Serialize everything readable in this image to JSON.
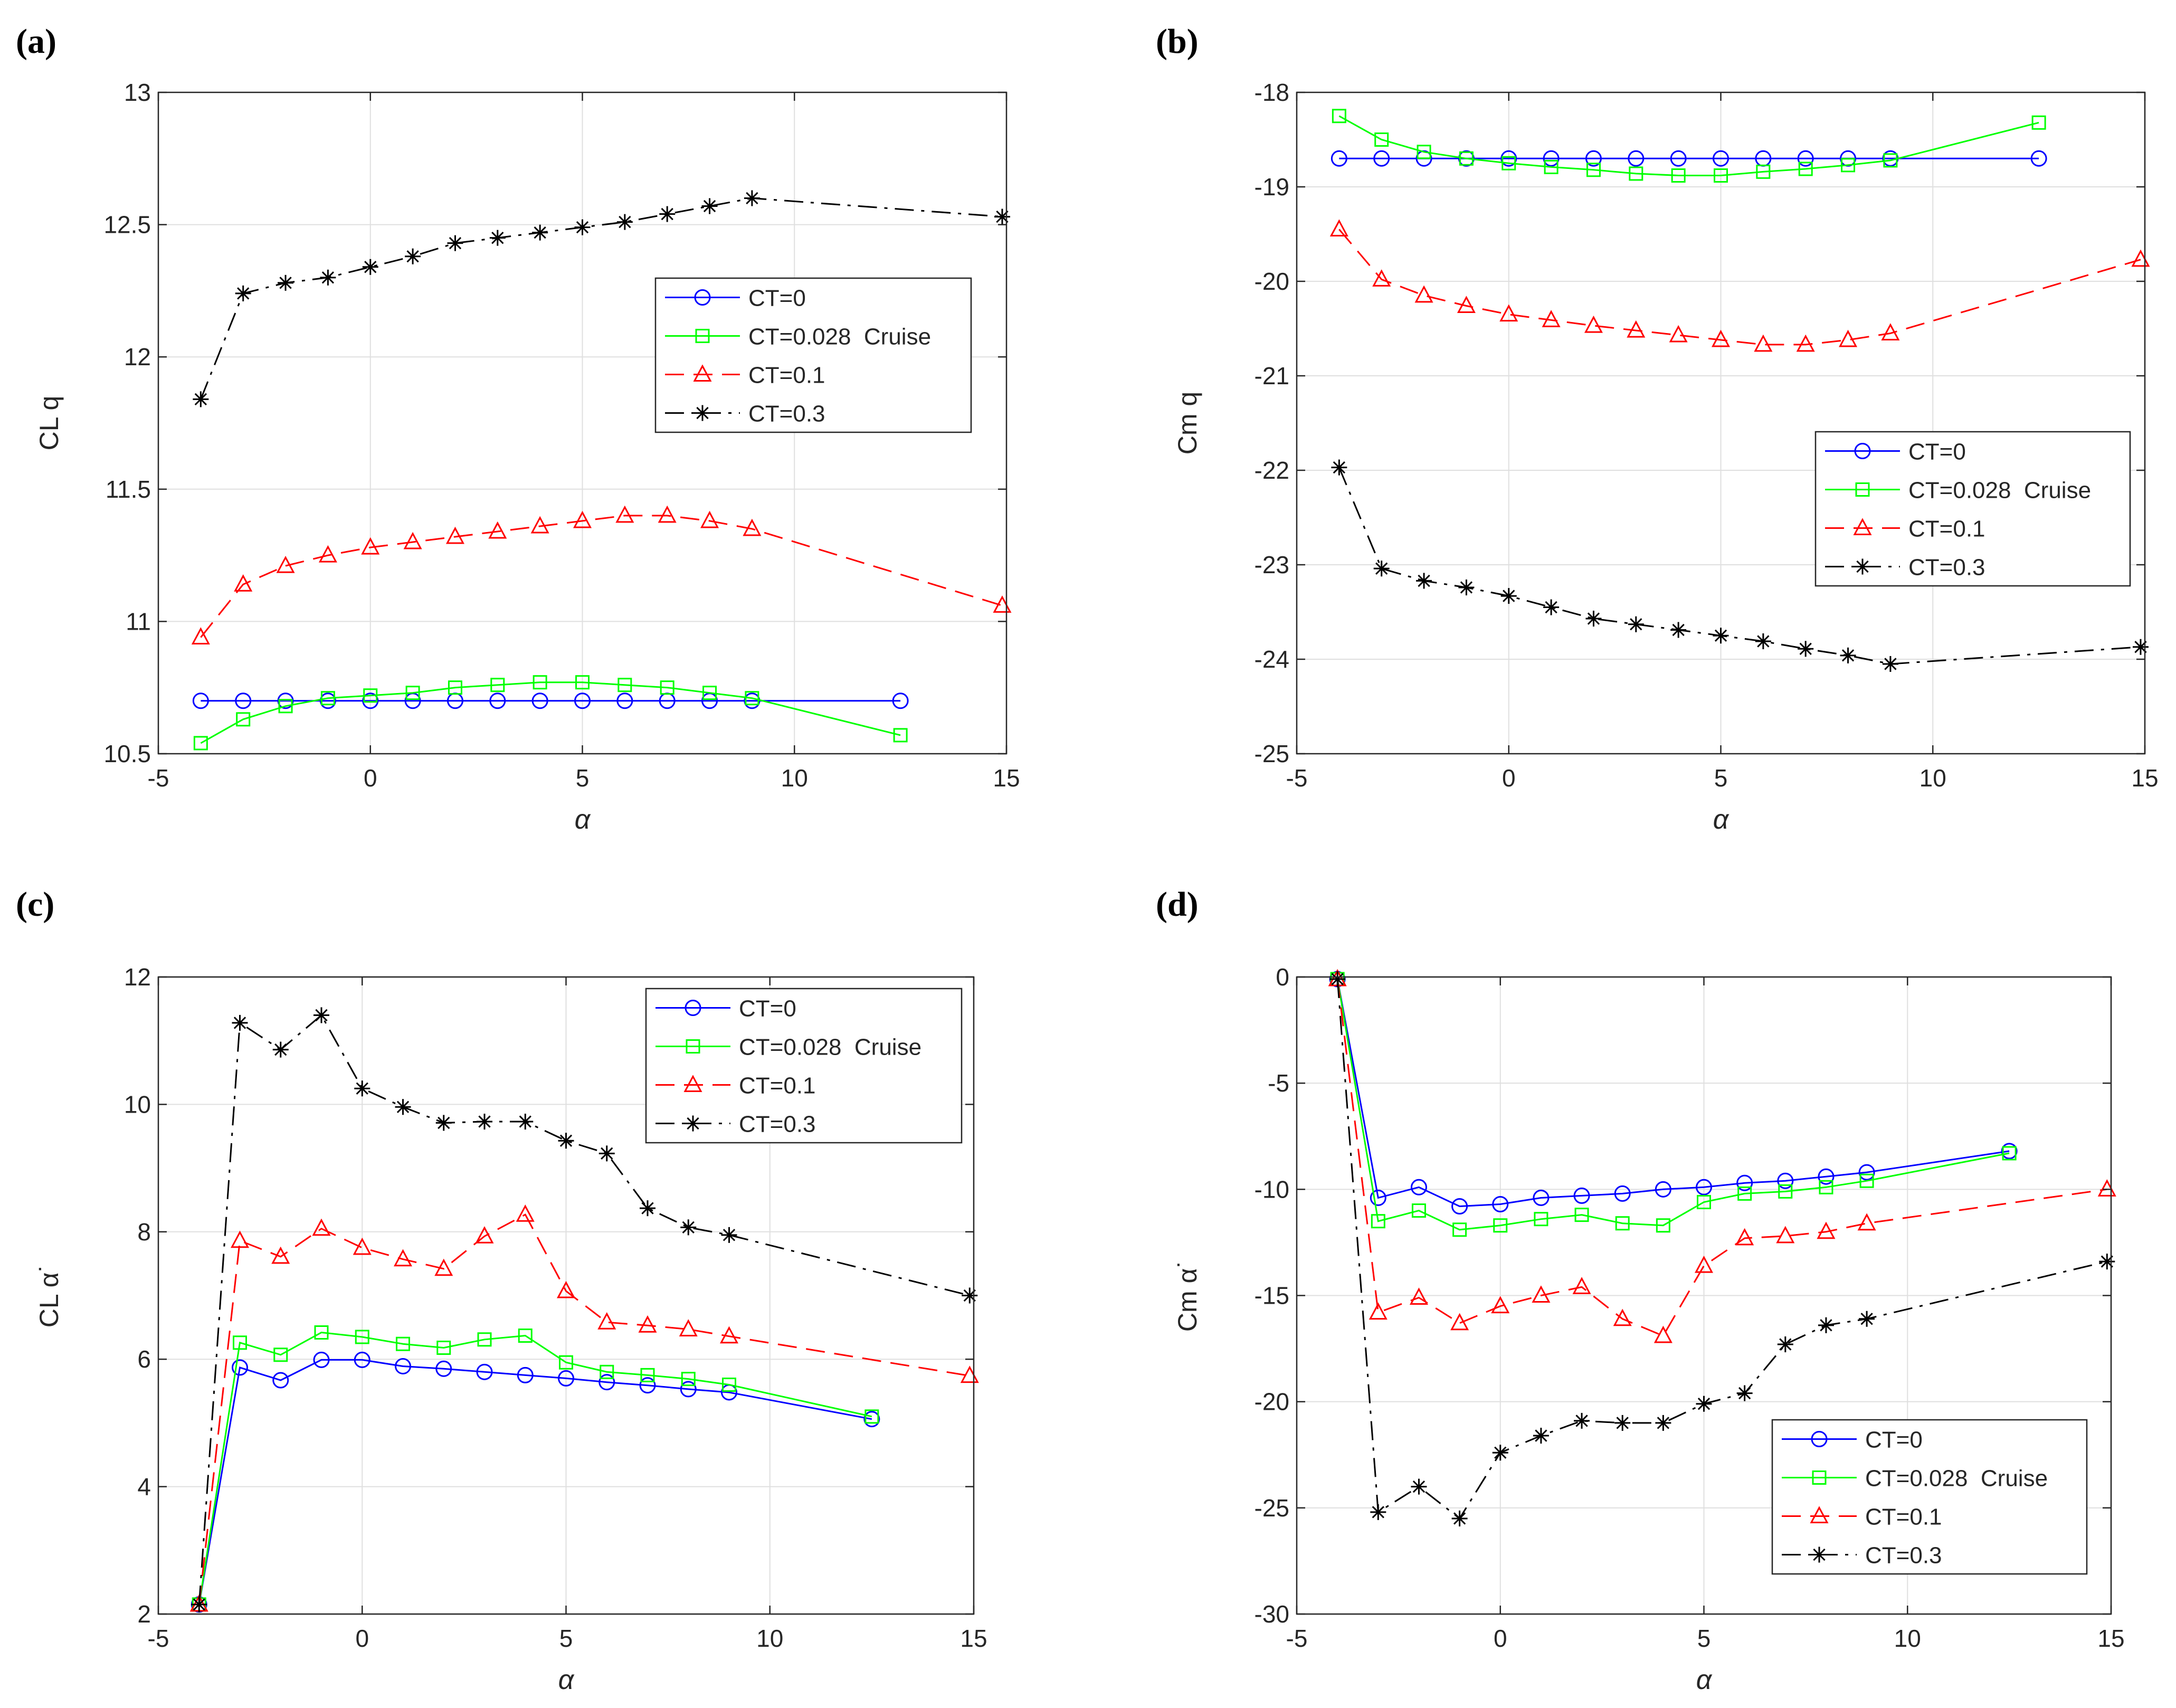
{
  "chart_data": [
    {
      "panel_label": "(a)",
      "type": "line",
      "title": "",
      "xlabel": "α",
      "ylabel": "CL q",
      "xlim": [
        -5,
        15
      ],
      "ylim": [
        10.5,
        13
      ],
      "xticks": [
        -5,
        0,
        5,
        10,
        15
      ],
      "yticks": [
        10.5,
        11,
        11.5,
        12,
        12.5,
        13
      ],
      "xtick_labels": [
        "-5",
        "0",
        "5",
        "10",
        "15"
      ],
      "ytick_labels": [
        "10.5",
        "11",
        "11.5",
        "12",
        "12.5",
        "13"
      ],
      "grid": true,
      "legend_position": "upper-right",
      "series": [
        {
          "name": "CT=0",
          "color": "#0000ff",
          "dash": "solid",
          "marker": "circle",
          "x": [
            -4,
            -3,
            -2,
            -1,
            0,
            1,
            2,
            3,
            4,
            5,
            6,
            7,
            8,
            9,
            12.5
          ],
          "y": [
            10.7,
            10.7,
            10.7,
            10.7,
            10.7,
            10.7,
            10.7,
            10.7,
            10.7,
            10.7,
            10.7,
            10.7,
            10.7,
            10.7,
            10.7
          ]
        },
        {
          "name": "CT=0.028  Cruise",
          "color": "#00ff00",
          "dash": "solid",
          "marker": "square",
          "x": [
            -4,
            -3,
            -2,
            -1,
            0,
            1,
            2,
            3,
            4,
            5,
            6,
            7,
            8,
            9,
            12.5
          ],
          "y": [
            10.54,
            10.63,
            10.68,
            10.71,
            10.72,
            10.73,
            10.75,
            10.76,
            10.77,
            10.77,
            10.76,
            10.75,
            10.73,
            10.71,
            10.57
          ]
        },
        {
          "name": "CT=0.1",
          "color": "#ff0000",
          "dash": "dashed",
          "marker": "triangle",
          "x": [
            -4,
            -3,
            -2,
            -1,
            0,
            1,
            2,
            3,
            4,
            5,
            6,
            7,
            8,
            9,
            14.9
          ],
          "y": [
            10.94,
            11.14,
            11.21,
            11.25,
            11.28,
            11.3,
            11.32,
            11.34,
            11.36,
            11.38,
            11.4,
            11.4,
            11.38,
            11.35,
            11.06
          ]
        },
        {
          "name": "CT=0.3",
          "color": "#000000",
          "dash": "dashdot",
          "marker": "star",
          "x": [
            -4,
            -3,
            -2,
            -1,
            0,
            1,
            2,
            3,
            4,
            5,
            6,
            7,
            8,
            9,
            14.9
          ],
          "y": [
            11.84,
            12.24,
            12.28,
            12.3,
            12.34,
            12.38,
            12.43,
            12.45,
            12.47,
            12.49,
            12.51,
            12.54,
            12.57,
            12.6,
            12.53
          ]
        }
      ]
    },
    {
      "panel_label": "(b)",
      "type": "line",
      "title": "",
      "xlabel": "α",
      "ylabel": "Cm q",
      "xlim": [
        -5,
        15
      ],
      "ylim": [
        -25,
        -18
      ],
      "xticks": [
        -5,
        0,
        5,
        10,
        15
      ],
      "yticks": [
        -25,
        -24,
        -23,
        -22,
        -21,
        -20,
        -19,
        -18
      ],
      "xtick_labels": [
        "-5",
        "0",
        "5",
        "10",
        "15"
      ],
      "ytick_labels": [
        "-25",
        "-24",
        "-23",
        "-22",
        "-21",
        "-20",
        "-19",
        "-18"
      ],
      "grid": true,
      "legend_position": "middle-right",
      "series": [
        {
          "name": "CT=0",
          "color": "#0000ff",
          "dash": "solid",
          "marker": "circle",
          "x": [
            -4,
            -3,
            -2,
            -1,
            0,
            1,
            2,
            3,
            4,
            5,
            6,
            7,
            8,
            9,
            12.5
          ],
          "y": [
            -18.7,
            -18.7,
            -18.7,
            -18.7,
            -18.7,
            -18.7,
            -18.7,
            -18.7,
            -18.7,
            -18.7,
            -18.7,
            -18.7,
            -18.7,
            -18.7,
            -18.7
          ]
        },
        {
          "name": "CT=0.028  Cruise",
          "color": "#00ff00",
          "dash": "solid",
          "marker": "square",
          "x": [
            -4,
            -3,
            -2,
            -1,
            0,
            1,
            2,
            3,
            4,
            5,
            6,
            7,
            8,
            9,
            12.5
          ],
          "y": [
            -18.25,
            -18.5,
            -18.63,
            -18.7,
            -18.75,
            -18.79,
            -18.82,
            -18.86,
            -18.88,
            -18.88,
            -18.84,
            -18.81,
            -18.77,
            -18.72,
            -18.32
          ]
        },
        {
          "name": "CT=0.1",
          "color": "#ff0000",
          "dash": "dashed",
          "marker": "triangle",
          "x": [
            -4,
            -3,
            -2,
            -1,
            0,
            1,
            2,
            3,
            4,
            5,
            6,
            7,
            8,
            9,
            14.9
          ],
          "y": [
            -19.45,
            -19.98,
            -20.15,
            -20.26,
            -20.35,
            -20.41,
            -20.47,
            -20.52,
            -20.57,
            -20.62,
            -20.67,
            -20.67,
            -20.62,
            -20.55,
            -19.77
          ]
        },
        {
          "name": "CT=0.3",
          "color": "#000000",
          "dash": "dashdot",
          "marker": "star",
          "x": [
            -4,
            -3,
            -2,
            -1,
            0,
            1,
            2,
            3,
            4,
            5,
            6,
            7,
            8,
            9,
            14.9
          ],
          "y": [
            -21.97,
            -23.04,
            -23.17,
            -23.24,
            -23.33,
            -23.45,
            -23.57,
            -23.63,
            -23.69,
            -23.75,
            -23.81,
            -23.89,
            -23.96,
            -24.05,
            -23.87
          ]
        }
      ]
    },
    {
      "panel_label": "(c)",
      "type": "line",
      "title": "",
      "xlabel": "α",
      "ylabel": "CL α˙",
      "xlim": [
        -5,
        15
      ],
      "ylim": [
        2,
        12
      ],
      "xticks": [
        -5,
        0,
        5,
        10,
        15
      ],
      "yticks": [
        2,
        4,
        6,
        8,
        10,
        12
      ],
      "xtick_labels": [
        "-5",
        "0",
        "5",
        "10",
        "15"
      ],
      "ytick_labels": [
        "2",
        "4",
        "6",
        "8",
        "10",
        "12"
      ],
      "grid": true,
      "legend_position": "upper-right",
      "series": [
        {
          "name": "CT=0",
          "color": "#0000ff",
          "dash": "solid",
          "marker": "circle",
          "x": [
            -4,
            -3,
            -2,
            -1,
            0,
            1,
            2,
            3,
            4,
            5,
            6,
            7,
            8,
            9,
            12.5
          ],
          "y": [
            2.15,
            5.87,
            5.67,
            5.99,
            5.99,
            5.89,
            5.85,
            5.8,
            5.75,
            5.7,
            5.64,
            5.59,
            5.53,
            5.48,
            5.06
          ]
        },
        {
          "name": "CT=0.028  Cruise",
          "color": "#00ff00",
          "dash": "solid",
          "marker": "square",
          "x": [
            -4,
            -3,
            -2,
            -1,
            0,
            1,
            2,
            3,
            4,
            5,
            6,
            7,
            8,
            9,
            12.5
          ],
          "y": [
            2.15,
            6.26,
            6.07,
            6.42,
            6.35,
            6.24,
            6.18,
            6.31,
            6.37,
            5.95,
            5.8,
            5.75,
            5.69,
            5.6,
            5.1
          ]
        },
        {
          "name": "CT=0.1",
          "color": "#ff0000",
          "dash": "dashed",
          "marker": "triangle",
          "x": [
            -4,
            -3,
            -2,
            -1,
            0,
            1,
            2,
            3,
            4,
            5,
            6,
            7,
            8,
            9,
            14.9
          ],
          "y": [
            2.15,
            7.86,
            7.61,
            8.05,
            7.75,
            7.57,
            7.42,
            7.93,
            8.27,
            7.07,
            6.58,
            6.53,
            6.47,
            6.36,
            5.74
          ]
        },
        {
          "name": "CT=0.3",
          "color": "#000000",
          "dash": "dashdot",
          "marker": "star",
          "x": [
            -4,
            -3,
            -2,
            -1,
            0,
            1,
            2,
            3,
            4,
            5,
            6,
            7,
            8,
            9,
            14.9
          ],
          "y": [
            2.15,
            11.28,
            10.86,
            11.4,
            10.25,
            9.96,
            9.71,
            9.73,
            9.73,
            9.43,
            9.23,
            8.37,
            8.07,
            7.95,
            7.0
          ]
        }
      ]
    },
    {
      "panel_label": "(d)",
      "type": "line",
      "title": "",
      "xlabel": "α",
      "ylabel": "Cm α˙",
      "xlim": [
        -5,
        15
      ],
      "ylim": [
        -30,
        0
      ],
      "xticks": [
        -5,
        0,
        5,
        10,
        15
      ],
      "yticks": [
        -30,
        -25,
        -20,
        -15,
        -10,
        -5,
        0
      ],
      "xtick_labels": [
        "-5",
        "0",
        "5",
        "10",
        "15"
      ],
      "ytick_labels": [
        "-30",
        "-25",
        "-20",
        "-15",
        "-10",
        "-5",
        "0"
      ],
      "grid": true,
      "legend_position": "lower-right",
      "series": [
        {
          "name": "CT=0",
          "color": "#0000ff",
          "dash": "solid",
          "marker": "circle",
          "x": [
            -4,
            -3,
            -2,
            -1,
            0,
            1,
            2,
            3,
            4,
            5,
            6,
            7,
            8,
            9,
            12.5
          ],
          "y": [
            -0.1,
            -10.4,
            -9.9,
            -10.8,
            -10.7,
            -10.4,
            -10.3,
            -10.2,
            -10.0,
            -9.9,
            -9.7,
            -9.6,
            -9.4,
            -9.2,
            -8.2
          ]
        },
        {
          "name": "CT=0.028  Cruise",
          "color": "#00ff00",
          "dash": "solid",
          "marker": "square",
          "x": [
            -4,
            -3,
            -2,
            -1,
            0,
            1,
            2,
            3,
            4,
            5,
            6,
            7,
            8,
            9,
            12.5
          ],
          "y": [
            -0.1,
            -11.5,
            -11.0,
            -11.9,
            -11.7,
            -11.4,
            -11.2,
            -11.6,
            -11.7,
            -10.6,
            -10.2,
            -10.1,
            -9.9,
            -9.6,
            -8.3
          ]
        },
        {
          "name": "CT=0.1",
          "color": "#ff0000",
          "dash": "dashed",
          "marker": "triangle",
          "x": [
            -4,
            -3,
            -2,
            -1,
            0,
            1,
            2,
            3,
            4,
            5,
            6,
            7,
            8,
            9,
            14.9
          ],
          "y": [
            -0.1,
            -15.8,
            -15.1,
            -16.3,
            -15.5,
            -15.0,
            -14.6,
            -16.1,
            -16.9,
            -13.6,
            -12.3,
            -12.2,
            -12.0,
            -11.6,
            -10.0
          ]
        },
        {
          "name": "CT=0.3",
          "color": "#000000",
          "dash": "dashdot",
          "marker": "star",
          "x": [
            -4,
            -3,
            -2,
            -1,
            0,
            1,
            2,
            3,
            4,
            5,
            6,
            7,
            8,
            9,
            14.9
          ],
          "y": [
            -0.1,
            -25.2,
            -24.0,
            -25.5,
            -22.4,
            -21.6,
            -20.9,
            -21.0,
            -21.0,
            -20.1,
            -19.6,
            -17.3,
            -16.4,
            -16.1,
            -13.4
          ]
        }
      ]
    }
  ]
}
